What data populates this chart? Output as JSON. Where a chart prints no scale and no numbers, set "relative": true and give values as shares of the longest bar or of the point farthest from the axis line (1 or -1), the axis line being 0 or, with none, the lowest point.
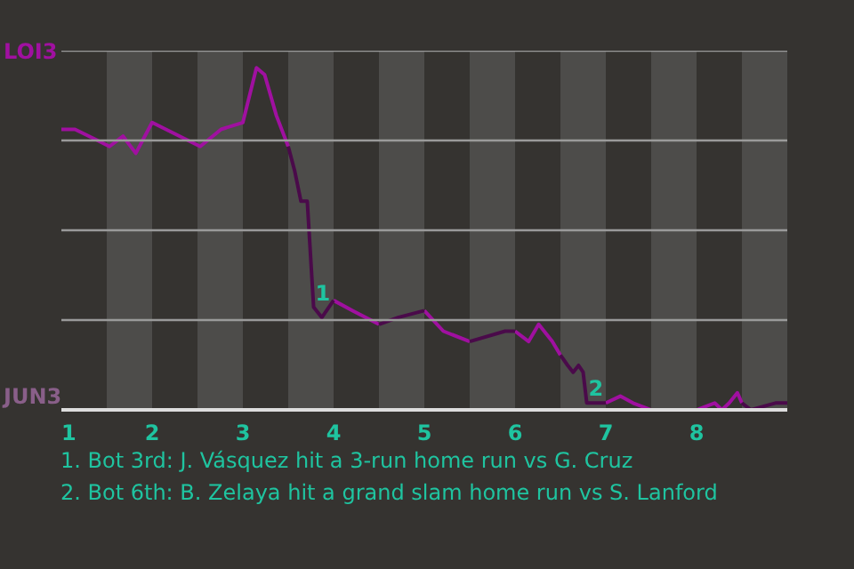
{
  "chart_data": {
    "type": "line",
    "relative": true,
    "x": [
      1.0,
      1.15,
      1.38,
      1.53,
      1.68,
      1.82,
      2.0,
      2.53,
      2.76,
      3.0,
      3.15,
      3.24,
      3.37,
      3.5,
      3.57,
      3.64,
      3.71,
      3.78,
      3.87,
      4.0,
      4.21,
      4.5,
      4.71,
      5.0,
      5.21,
      5.5,
      5.89,
      6.0,
      6.15,
      6.26,
      6.41,
      6.5,
      6.58,
      6.64,
      6.7,
      6.75,
      6.79,
      6.83,
      7.0,
      7.16,
      7.3,
      7.5,
      8.0,
      8.2,
      8.28,
      8.36,
      8.45,
      8.5,
      8.6,
      8.87,
      9.0
    ],
    "series": [
      {
        "color": "#a010a0",
        "values": [
          0.82,
          0.82,
          0.79,
          0.77,
          0.8,
          0.75,
          0.84,
          0.77,
          0.82,
          0.84,
          1,
          0.98,
          0.86,
          0.77,
          null,
          null,
          null,
          null,
          null,
          0.32,
          0.29,
          0.25,
          null,
          0.29,
          0.23,
          0.2,
          null,
          0.23,
          0.2,
          0.25,
          0.2,
          0.16,
          null,
          null,
          null,
          null,
          null,
          null,
          0.02,
          0.04,
          0.02,
          0,
          0,
          0.02,
          0,
          0.02,
          0.05,
          0.02,
          null,
          null,
          null
        ]
      },
      {
        "color": "#4a0a4a",
        "values": [
          null,
          null,
          null,
          null,
          null,
          null,
          null,
          null,
          null,
          null,
          null,
          null,
          null,
          0.77,
          0.7,
          0.61,
          0.61,
          0.3,
          0.27,
          0.32,
          null,
          0.25,
          0.27,
          0.29,
          null,
          0.2,
          0.23,
          0.23,
          null,
          null,
          null,
          0.16,
          0.13,
          0.11,
          0.13,
          0.11,
          0.02,
          0.02,
          0.02,
          null,
          null,
          0,
          0,
          null,
          null,
          null,
          null,
          0.02,
          0,
          0.02,
          0.02
        ]
      }
    ],
    "xlim": [
      1,
      9
    ],
    "xticks": [
      1,
      2,
      3,
      4,
      5,
      6,
      7,
      8
    ],
    "grid": "y",
    "marker": "none",
    "line_style": "solid",
    "bands": [
      {
        "axis": "x",
        "from": 1.5,
        "to": 2,
        "color": "#4d4c4a"
      },
      {
        "axis": "x",
        "from": 2.5,
        "to": 3,
        "color": "#4d4c4a"
      },
      {
        "axis": "x",
        "from": 3.5,
        "to": 4,
        "color": "#4d4c4a"
      },
      {
        "axis": "x",
        "from": 4.5,
        "to": 5,
        "color": "#4d4c4a"
      },
      {
        "axis": "x",
        "from": 5.5,
        "to": 6,
        "color": "#4d4c4a"
      },
      {
        "axis": "x",
        "from": 6.5,
        "to": 7,
        "color": "#4d4c4a"
      },
      {
        "axis": "x",
        "from": 7.5,
        "to": 8,
        "color": "#4d4c4a"
      },
      {
        "axis": "x",
        "from": 8.5,
        "to": 9,
        "color": "#4d4c4a"
      }
    ],
    "annotations": [
      "LOI3",
      "JUN3",
      {
        "text": "1",
        "x": 3.78,
        "y": 0.3
      },
      {
        "text": "2",
        "x": 6.79,
        "y": 0.02
      },
      "1. Bot 3rd: J. Vásquez hit a 3-run home run vs G. Cruz",
      "2. Bot 6th: B. Zelaya hit a grand slam home run vs S. Lanford"
    ]
  }
}
